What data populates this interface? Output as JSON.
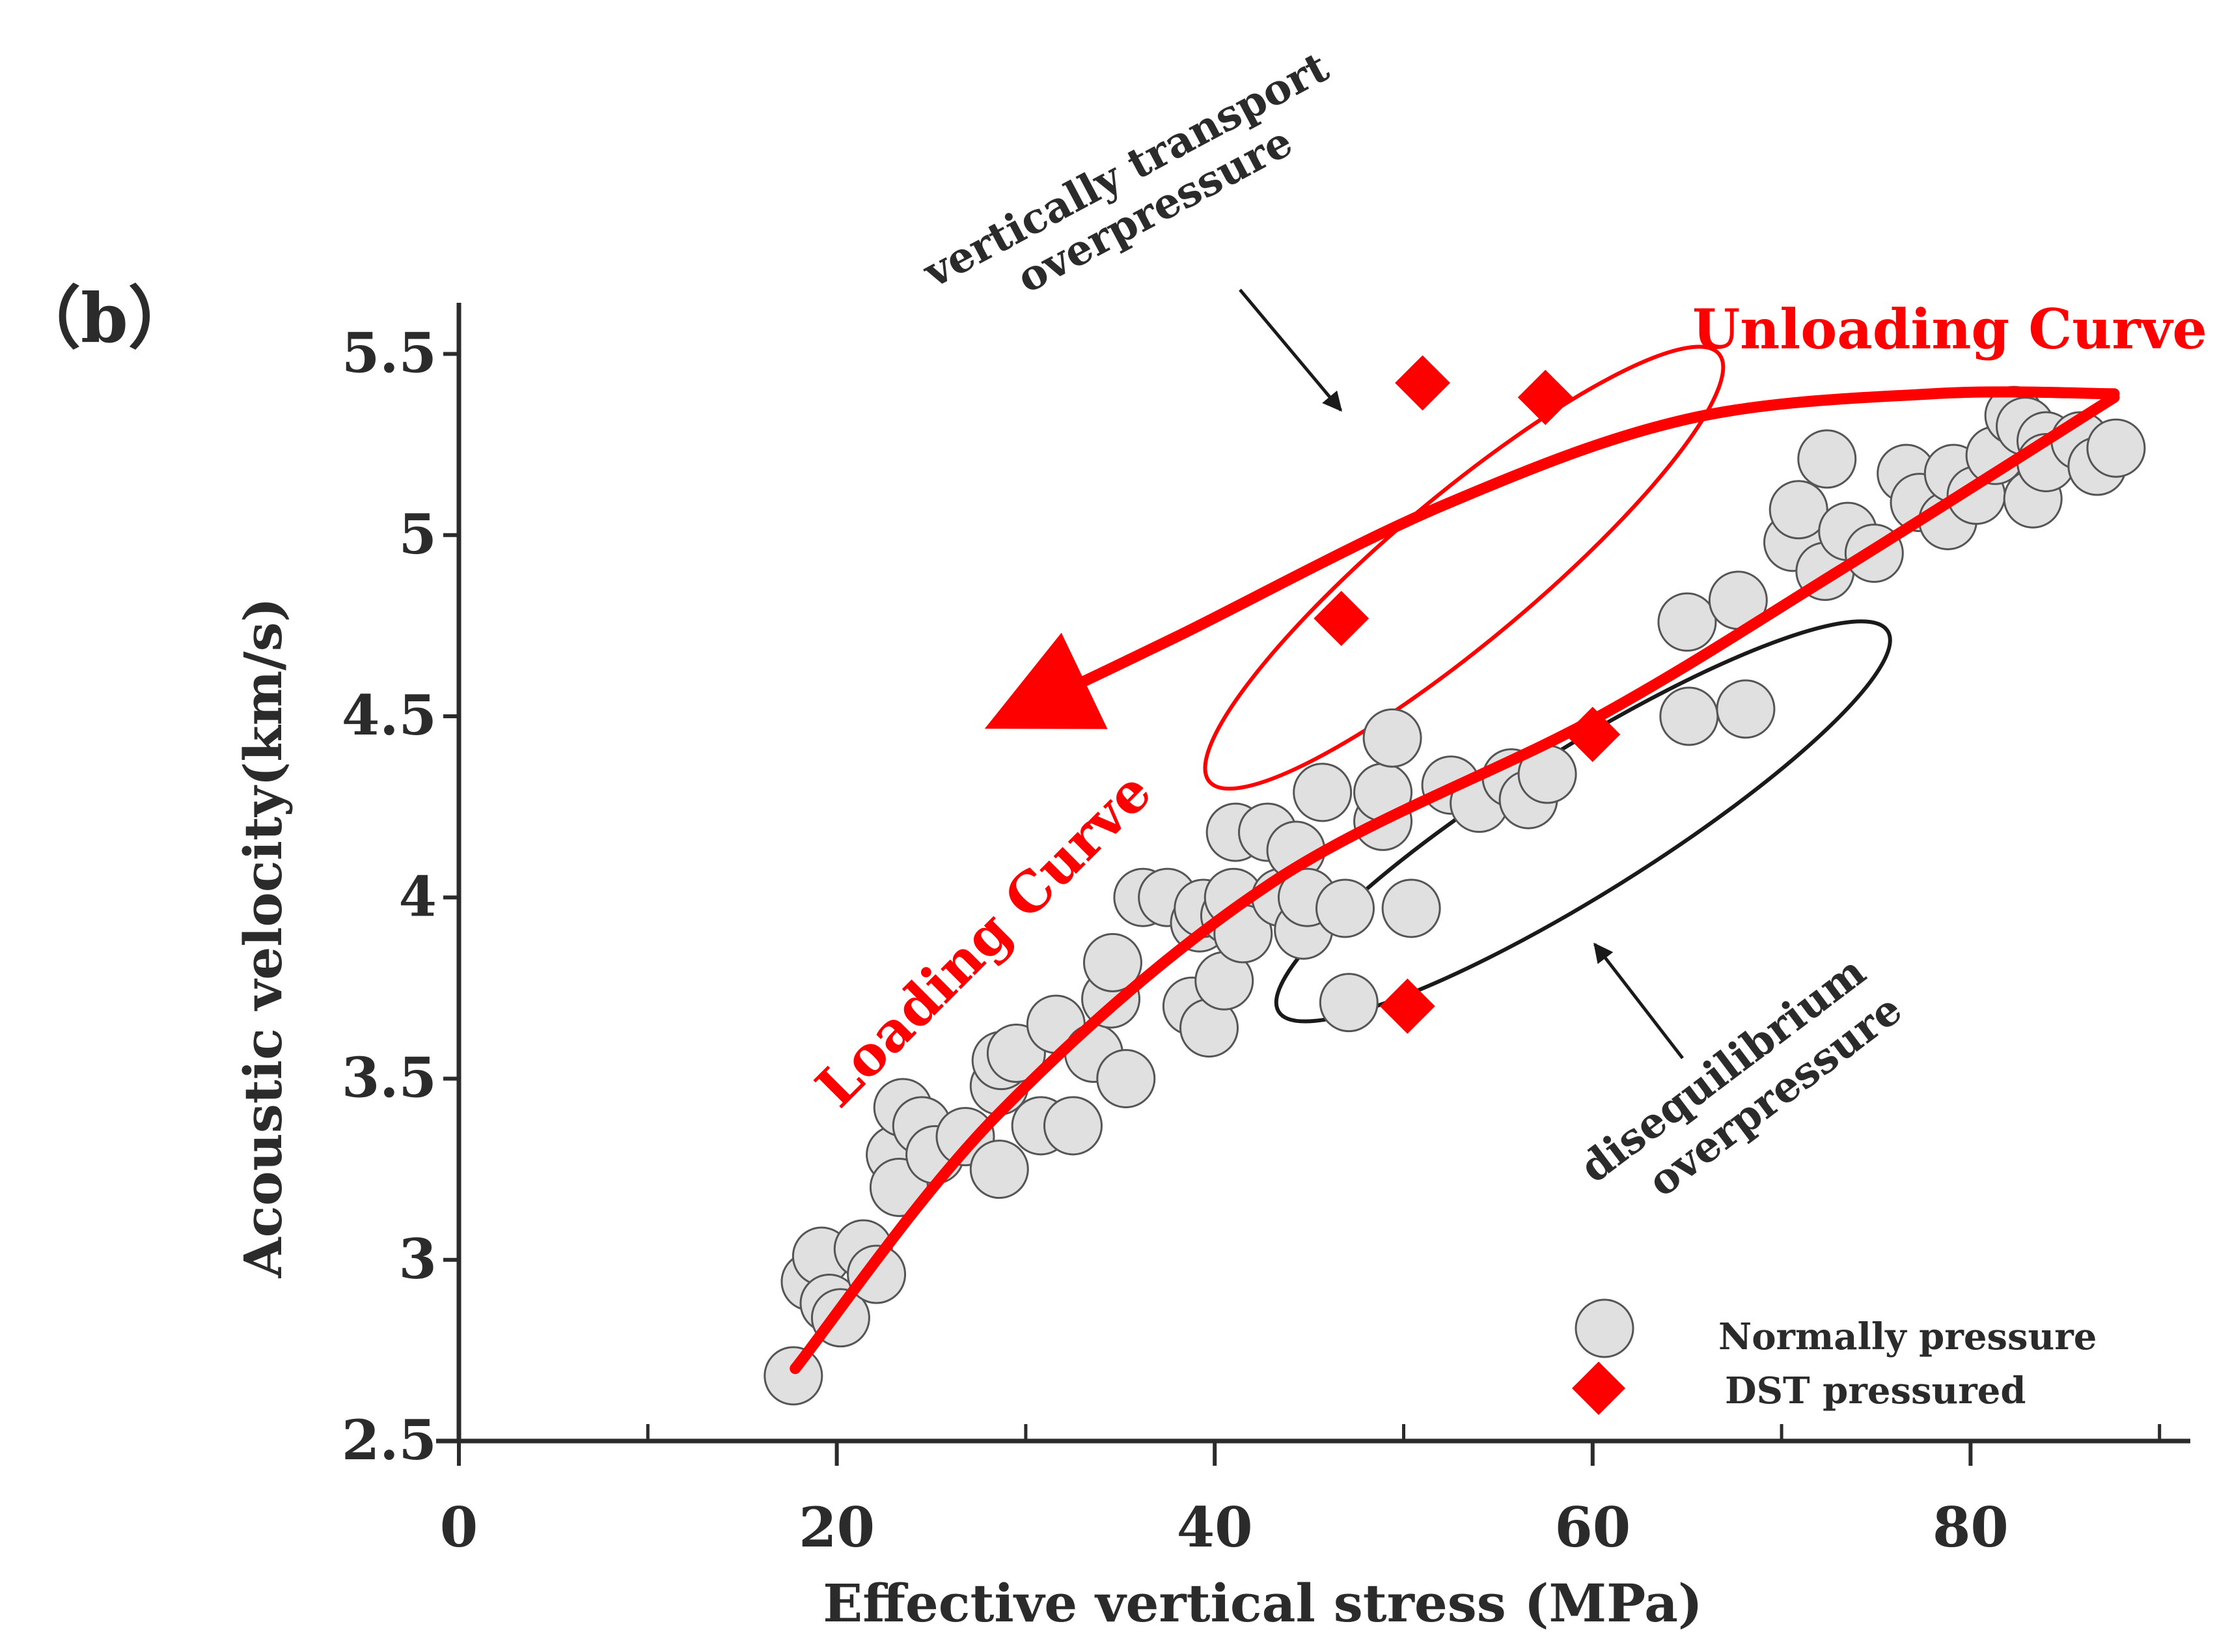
{
  "chart_data": {
    "type": "scatter",
    "panel_label": "（b）",
    "xlabel": "Effective vertical stress (MPa)",
    "ylabel": "Acoustic velocity(km/s)",
    "xlim": [
      0,
      90
    ],
    "ylim": [
      2.5,
      5.65
    ],
    "x_ticks": [
      0,
      20,
      40,
      60,
      80
    ],
    "x_tick_labels": [
      "0",
      "20",
      "40",
      "60",
      "80"
    ],
    "x_minor_ticks": [
      10,
      30,
      50,
      70,
      90
    ],
    "y_ticks": [
      2.5,
      3,
      3.5,
      4,
      4.5,
      5,
      5.5
    ],
    "y_tick_labels": [
      "2.5",
      "3",
      "3.5",
      "4",
      "4.5",
      "5",
      "5.5"
    ],
    "series": [
      {
        "name": "Normally pressure",
        "marker": "circle",
        "color": "#e0e0e0",
        "points": [
          [
            17.7,
            2.68
          ],
          [
            18.6,
            2.94
          ],
          [
            19.2,
            3.01
          ],
          [
            19.6,
            2.88
          ],
          [
            20.2,
            2.84
          ],
          [
            21.4,
            3.03
          ],
          [
            22.1,
            2.96
          ],
          [
            23.1,
            3.29
          ],
          [
            23.3,
            3.2
          ],
          [
            23.5,
            3.42
          ],
          [
            24.5,
            3.37
          ],
          [
            25.2,
            3.29
          ],
          [
            26.8,
            3.34
          ],
          [
            28.6,
            3.25
          ],
          [
            28.6,
            3.48
          ],
          [
            28.7,
            3.55
          ],
          [
            29.5,
            3.57
          ],
          [
            30.8,
            3.37
          ],
          [
            31.6,
            3.65
          ],
          [
            32.5,
            3.37
          ],
          [
            33.6,
            3.57
          ],
          [
            34.5,
            3.72
          ],
          [
            34.6,
            3.82
          ],
          [
            35.3,
            3.5
          ],
          [
            36.2,
            4.0
          ],
          [
            37.5,
            4.0
          ],
          [
            38.8,
            3.7
          ],
          [
            39.2,
            3.93
          ],
          [
            39.4,
            3.97
          ],
          [
            39.7,
            3.64
          ],
          [
            40.5,
            3.77
          ],
          [
            40.8,
            3.95
          ],
          [
            41.0,
            4.0
          ],
          [
            41.5,
            3.9
          ],
          [
            41.1,
            4.18
          ],
          [
            42.8,
            4.18
          ],
          [
            43.5,
            4.0
          ],
          [
            44.3,
            4.13
          ],
          [
            44.7,
            3.91
          ],
          [
            44.9,
            4.0
          ],
          [
            45.7,
            4.29
          ],
          [
            46.9,
            3.97
          ],
          [
            47.1,
            3.71
          ],
          [
            48.9,
            4.21
          ],
          [
            48.9,
            4.29
          ],
          [
            49.4,
            4.44
          ],
          [
            50.4,
            3.97
          ],
          [
            52.5,
            4.31
          ],
          [
            54.0,
            4.26
          ],
          [
            55.7,
            4.33
          ],
          [
            56.6,
            4.27
          ],
          [
            57.6,
            4.34
          ],
          [
            65.0,
            4.76
          ],
          [
            65.1,
            4.5
          ],
          [
            67.7,
            4.82
          ],
          [
            68.1,
            4.52
          ],
          [
            70.6,
            4.98
          ],
          [
            70.9,
            5.07
          ],
          [
            72.3,
            4.9
          ],
          [
            72.4,
            5.21
          ],
          [
            73.5,
            5.01
          ],
          [
            74.9,
            4.95
          ],
          [
            76.6,
            5.17
          ],
          [
            77.3,
            5.09
          ],
          [
            78.8,
            5.04
          ],
          [
            79.1,
            5.17
          ],
          [
            80.3,
            5.11
          ],
          [
            81.3,
            5.22
          ],
          [
            82.3,
            5.33
          ],
          [
            82.9,
            5.3
          ],
          [
            83.3,
            5.1
          ],
          [
            84.0,
            5.26
          ],
          [
            84.0,
            5.2
          ],
          [
            85.8,
            5.26
          ],
          [
            86.7,
            5.19
          ],
          [
            87.7,
            5.24
          ]
        ]
      },
      {
        "name": "DST pressured",
        "marker": "diamond",
        "color": "#ff0000",
        "points": [
          [
            51.0,
            5.42
          ],
          [
            57.5,
            5.38
          ],
          [
            46.7,
            4.77
          ],
          [
            60.0,
            4.45
          ],
          [
            50.2,
            3.7
          ]
        ]
      }
    ],
    "curves": [
      {
        "name": "Loading Curve",
        "color": "#ff0000",
        "points": [
          [
            17.8,
            2.7
          ],
          [
            28.5,
            3.4
          ],
          [
            43.0,
            4.04
          ],
          [
            60.0,
            4.49
          ],
          [
            73.0,
            4.9
          ],
          [
            87.6,
            5.38
          ]
        ]
      },
      {
        "name": "Unloading Curve",
        "color": "#ff0000",
        "arrow": "start",
        "points": [
          [
            87.6,
            5.39
          ],
          [
            78.0,
            5.39
          ],
          [
            65.0,
            5.32
          ],
          [
            52.0,
            5.08
          ],
          [
            38.0,
            4.72
          ],
          [
            30.0,
            4.52
          ]
        ]
      }
    ],
    "ellipses": [
      {
        "name": "vertically transport overpressure",
        "color": "#ff0000",
        "center": [
          53.2,
          4.91
        ],
        "semi_axes": [
          17.6,
          0.2
        ],
        "angle_deg": 40
      },
      {
        "name": "disequilibrium overpressure",
        "color": "#1a1a1a",
        "center": [
          59.5,
          4.21
        ],
        "semi_axes": [
          19.0,
          0.2
        ],
        "angle_deg": 32
      }
    ],
    "annotations": [
      {
        "name": "vertically-transport",
        "lines": [
          "vertically transport",
          "overpressure"
        ],
        "arrow_to": [
          46.6,
          5.38
        ]
      },
      {
        "name": "disequilibrium",
        "lines": [
          "disequilibrium",
          "overpressure"
        ],
        "arrow_to": [
          60.1,
          3.87
        ]
      }
    ],
    "labels": {
      "loading": "Loading Curve",
      "unloading": "Unloading Curve"
    },
    "legend": {
      "position": "bottom-right",
      "entries": [
        "Normally pressure",
        "DST pressured"
      ]
    },
    "colors": {
      "axis": "#2b2b2b",
      "accent": "#ff0000",
      "circle_fill": "#e0e0e0",
      "circle_stroke": "#555555"
    }
  }
}
